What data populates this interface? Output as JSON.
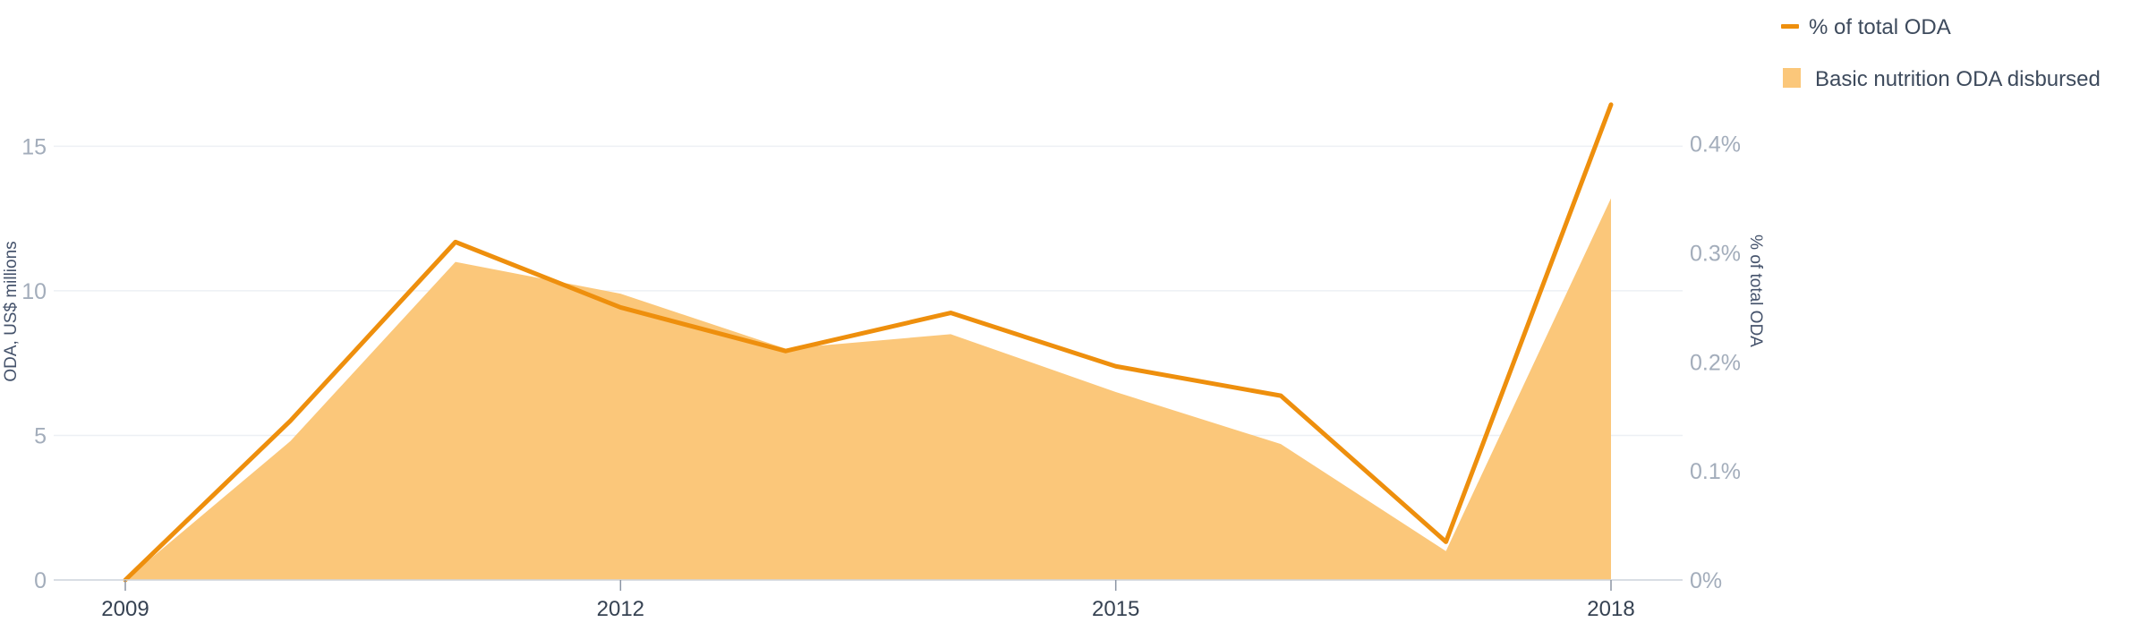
{
  "chart_data": {
    "type": "area+line",
    "x": [
      2009,
      2010,
      2011,
      2012,
      2013,
      2014,
      2015,
      2016,
      2017,
      2018
    ],
    "x_tick_labels": [
      "2009",
      "2012",
      "2015",
      "2018"
    ],
    "x_tick_values": [
      2009,
      2012,
      2015,
      2018
    ],
    "series": [
      {
        "name": "Basic nutrition ODA disbursed",
        "kind": "area",
        "axis": "left",
        "color": "#fbc77a",
        "values": [
          0,
          4.8,
          11.0,
          9.9,
          8.0,
          8.5,
          6.5,
          4.7,
          1.0,
          13.2
        ]
      },
      {
        "name": "% of total ODA",
        "kind": "line",
        "axis": "right",
        "color": "#ee8f0d",
        "values": [
          0.0,
          0.146,
          0.31,
          0.25,
          0.21,
          0.245,
          0.196,
          0.169,
          0.035,
          0.436
        ]
      }
    ],
    "y_left": {
      "label": "ODA, US$ millions",
      "ticks": [
        0,
        5,
        10,
        15
      ],
      "tick_labels": [
        "0",
        "5",
        "10",
        "15"
      ],
      "range": [
        0,
        18.2
      ]
    },
    "y_right": {
      "label": "% of total ODA",
      "ticks": [
        0,
        0.1,
        0.2,
        0.3,
        0.4
      ],
      "tick_labels": [
        "0%",
        "0.1%",
        "0.2%",
        "0.3%",
        "0.4%"
      ],
      "range": [
        0,
        0.4827
      ]
    },
    "grid": "horizontal",
    "gridline_color": "#edf0f4",
    "legend_position": "top-right",
    "legend": [
      {
        "label": "% of total ODA",
        "type": "line",
        "color": "#ee8f0d"
      },
      {
        "label": "Basic nutrition ODA disbursed",
        "type": "swatch",
        "color": "#fbc77a"
      }
    ]
  }
}
